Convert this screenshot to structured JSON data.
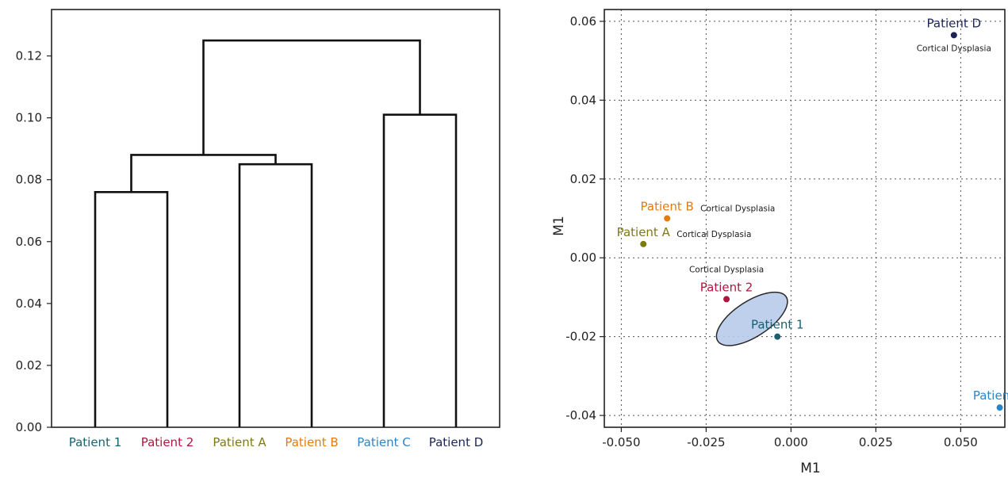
{
  "chart_data": [
    {
      "type": "dendrogram",
      "leaves": [
        {
          "label": "Patient 1",
          "color": "#1a6070"
        },
        {
          "label": "Patient 2",
          "color": "#b0153f"
        },
        {
          "label": "Patient A",
          "color": "#7d7a12"
        },
        {
          "label": "Patient B",
          "color": "#e07c10"
        },
        {
          "label": "Patient C",
          "color": "#2a86c8"
        },
        {
          "label": "Patient D",
          "color": "#1c2456"
        }
      ],
      "merges": [
        {
          "left": 0,
          "right": 1,
          "height": 0.076
        },
        {
          "left": 2,
          "right": 3,
          "height": 0.085
        },
        {
          "left": 6,
          "right": 7,
          "height": 0.088
        },
        {
          "left": 4,
          "right": 5,
          "height": 0.101
        },
        {
          "left": 8,
          "right": 9,
          "height": 0.125
        }
      ],
      "ylim": [
        0,
        0.135
      ],
      "yticks": [
        "0.00",
        "0.02",
        "0.04",
        "0.06",
        "0.08",
        "0.10",
        "0.12"
      ],
      "xlabel": "",
      "ylabel": ""
    },
    {
      "type": "scatter",
      "xlabel": "M1",
      "ylabel": "M1",
      "xlim": [
        -0.055,
        0.063
      ],
      "ylim": [
        -0.043,
        0.063
      ],
      "xticks": [
        "-0.050",
        "-0.025",
        "0.000",
        "0.025",
        "0.050"
      ],
      "yticks": [
        "-0.04",
        "-0.02",
        "0.00",
        "0.02",
        "0.04",
        "0.06"
      ],
      "grid": true,
      "points": [
        {
          "label": "Patient D",
          "note": "Cortical Dysplasia",
          "x": 0.048,
          "y": 0.0565,
          "color": "#1c2456",
          "label_pos": "above",
          "note_pos": "below"
        },
        {
          "label": "Patient B",
          "note": "Cortical Dysplasia",
          "x": -0.0365,
          "y": 0.01,
          "color": "#e07c10",
          "label_pos": "above",
          "note_pos": "right"
        },
        {
          "label": "Patient A",
          "note": "Cortical Dysplasia",
          "x": -0.0435,
          "y": 0.0035,
          "color": "#7d7a12",
          "label_pos": "above",
          "note_pos": "right"
        },
        {
          "label": "Patient 2",
          "note": "Cortical Dysplasia",
          "x": -0.019,
          "y": -0.0105,
          "color": "#b0153f",
          "label_pos": "above",
          "note_pos": "above2"
        },
        {
          "label": "Patient 1",
          "note": "",
          "x": -0.004,
          "y": -0.02,
          "color": "#1a6070",
          "label_pos": "above",
          "note_pos": "none"
        },
        {
          "label": "Patient C",
          "note": "",
          "x": 0.0615,
          "y": -0.038,
          "color": "#2a86c8",
          "label_pos": "above",
          "note_pos": "none"
        }
      ],
      "ellipse": {
        "cx": -0.0115,
        "cy": -0.0155,
        "rx": 0.012,
        "ry": 0.0045,
        "angle_deg": -33,
        "color": "#b9cbea"
      }
    }
  ]
}
